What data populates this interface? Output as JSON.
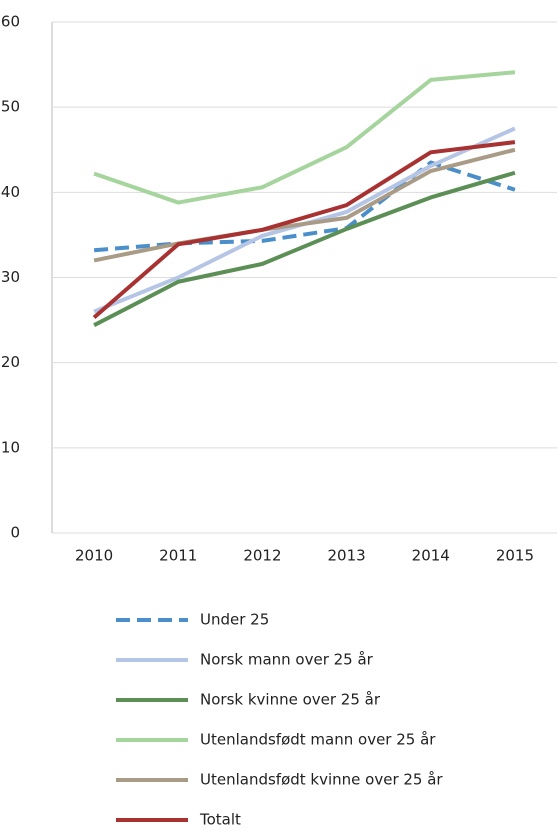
{
  "chart_data": {
    "type": "line",
    "categories": [
      "2010",
      "2011",
      "2012",
      "2013",
      "2014",
      "2015"
    ],
    "series": [
      {
        "name": "Under 25",
        "color": "#4a8fca",
        "dashed": true,
        "values": [
          33.2,
          34.0,
          34.3,
          35.8,
          43.5,
          40.3
        ]
      },
      {
        "name": "Norsk mann over 25 år",
        "color": "#b5c5e6",
        "values": [
          26.0,
          30.0,
          34.9,
          37.7,
          43.1,
          47.5
        ]
      },
      {
        "name": "Norsk kvinne over 25 år",
        "color": "#5b8f55",
        "values": [
          24.4,
          29.5,
          31.6,
          35.7,
          39.4,
          42.3
        ]
      },
      {
        "name": "Utenlandsfødt mann over 25 år",
        "color": "#a5d49d",
        "values": [
          42.2,
          38.8,
          40.6,
          45.3,
          53.2,
          54.1
        ]
      },
      {
        "name": "Utenlandsfødt kvinne over 25 år",
        "color": "#a99b85",
        "values": [
          32.0,
          34.0,
          35.6,
          37.0,
          42.5,
          45.0
        ]
      },
      {
        "name": "Totalt",
        "color": "#a83131",
        "values": [
          25.3,
          33.9,
          35.6,
          38.5,
          44.7,
          45.9
        ]
      }
    ],
    "ylim": [
      0,
      60
    ],
    "yticks": [
      0,
      10,
      20,
      30,
      40,
      50,
      60
    ],
    "grid": true
  }
}
